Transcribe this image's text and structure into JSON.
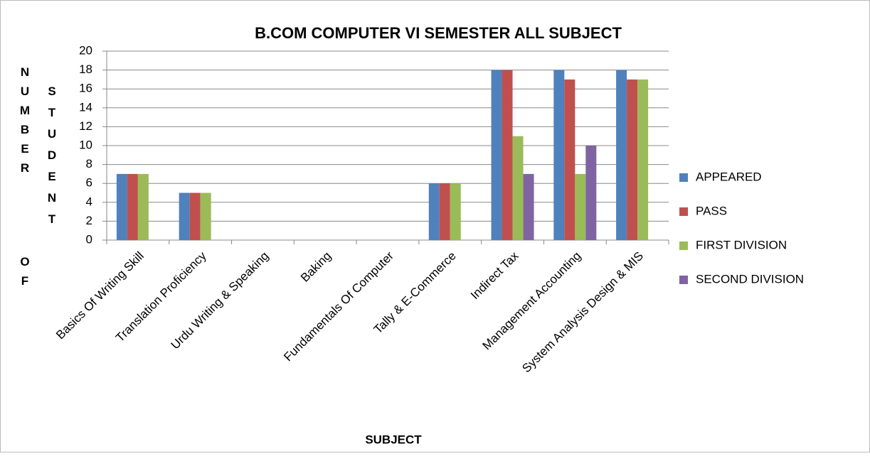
{
  "chart_data": {
    "type": "bar",
    "title": "B.COM COMPUTER VI SEMESTER ALL SUBJECT",
    "x_label": "SUBJECT",
    "y_label": [
      "NUMBER OF",
      "STUDENT"
    ],
    "categories": [
      "Basics Of Writing Skill",
      "Translation Proficiency",
      "Urdu Writing & Speaking",
      "Baking",
      "Fundamentals Of Computer",
      "Tally & E-Commerce",
      "Indirect Tax",
      "Management Accounting",
      "System Analysis Design & MIS"
    ],
    "series": [
      {
        "name": "APPEARED",
        "color": "#4f81bd",
        "values": [
          7,
          5,
          0,
          0,
          0,
          6,
          18,
          18,
          18
        ]
      },
      {
        "name": "PASS",
        "color": "#c0504d",
        "values": [
          7,
          5,
          0,
          0,
          0,
          6,
          18,
          17,
          17
        ]
      },
      {
        "name": "FIRST DIVISION",
        "color": "#9bbb59",
        "values": [
          7,
          5,
          0,
          0,
          0,
          6,
          11,
          7,
          17
        ]
      },
      {
        "name": "SECOND DIVISION",
        "color": "#8064a2",
        "values": [
          0,
          0,
          0,
          0,
          0,
          0,
          7,
          10,
          0
        ]
      }
    ],
    "ylim": [
      0,
      20
    ],
    "yticks": [
      0,
      2,
      4,
      6,
      8,
      10,
      12,
      14,
      16,
      18,
      20
    ],
    "grid": true,
    "legend": "right"
  }
}
